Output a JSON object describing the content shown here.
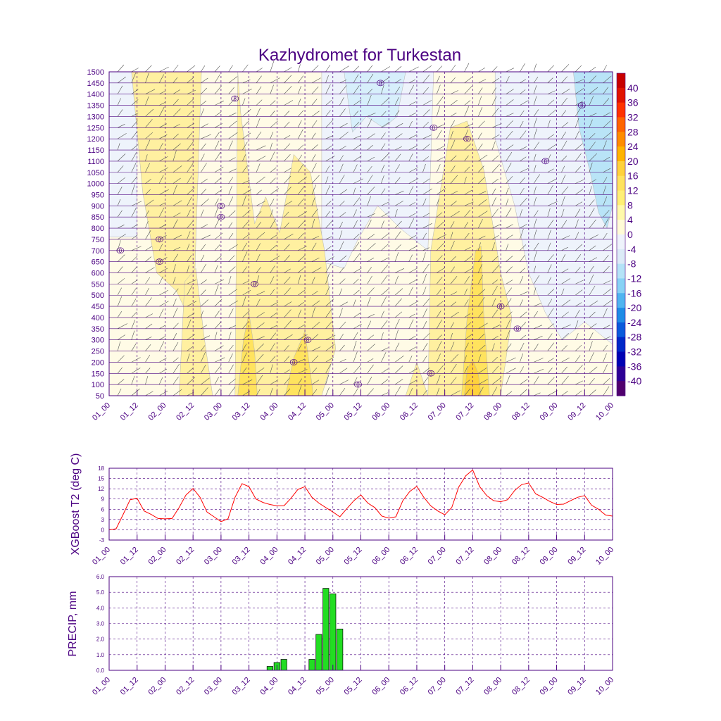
{
  "title": "Kazhydromet for Turkestan",
  "time_labels": [
    "01_00",
    "01_12",
    "02_00",
    "02_12",
    "03_00",
    "03_12",
    "04_00",
    "04_12",
    "05_00",
    "05_12",
    "06_00",
    "06_12",
    "07_00",
    "07_12",
    "08_00",
    "08_12",
    "09_00",
    "09_12",
    "10_00"
  ],
  "chart_data": [
    {
      "type": "heatmap",
      "name": "cross-section",
      "title": "Kazhydromet for Turkestan",
      "y_levels": [
        1500,
        1450,
        1400,
        1350,
        1300,
        1250,
        1200,
        1150,
        1100,
        1050,
        1000,
        950,
        900,
        850,
        800,
        750,
        700,
        650,
        600,
        550,
        500,
        450,
        400,
        350,
        300,
        250,
        200,
        150,
        100,
        50
      ],
      "ylim": [
        50,
        1500
      ],
      "x_range": [
        0,
        18
      ],
      "colorbar": {
        "labels": [
          "40",
          "36",
          "32",
          "28",
          "24",
          "20",
          "16",
          "12",
          "8",
          "4",
          "0",
          "-4",
          "-8",
          "-12",
          "-16",
          "-20",
          "-24",
          "-28",
          "-32",
          "-36",
          "-40"
        ],
        "colors": [
          "#c80000",
          "#e11400",
          "#ff3200",
          "#ff6400",
          "#ff8c00",
          "#ffb400",
          "#ffd23c",
          "#ffe35e",
          "#fff075",
          "#fffaaa",
          "#fffcd6",
          "#eef3fb",
          "#dcebf7",
          "#b4e3f7",
          "#87d2f5",
          "#50b4f0",
          "#1e8ce6",
          "#0a5adc",
          "#0028c8",
          "#0000b4",
          "#2d0096",
          "#50006e"
        ]
      },
      "annotations": [
        "8",
        "8",
        "8",
        "8",
        "8",
        "8",
        "8",
        "8",
        "8",
        "0",
        "0",
        "0",
        "0",
        "0",
        "0",
        "0",
        "0",
        "0"
      ]
    },
    {
      "type": "line",
      "name": "t2",
      "ylabel": "XGBoost T2 (deg C)",
      "ylim": [
        -3,
        18
      ],
      "yticks": [
        "-3",
        "0",
        "3",
        "6",
        "9",
        "12",
        "15",
        "18"
      ],
      "x": [
        0,
        0.25,
        0.5,
        0.75,
        1,
        1.25,
        1.5,
        1.75,
        2,
        2.25,
        2.5,
        2.75,
        3,
        3.25,
        3.5,
        3.75,
        4,
        4.25,
        4.5,
        4.75,
        5,
        5.25,
        5.5,
        5.75,
        6,
        6.25,
        6.5,
        6.75,
        7,
        7.25,
        7.5,
        7.75,
        8,
        8.25,
        8.5,
        8.75,
        9,
        9.25,
        9.5,
        9.75,
        10,
        10.25,
        10.5,
        10.75,
        11,
        11.25,
        11.5,
        11.75,
        12,
        12.25,
        12.5,
        12.75,
        13,
        13.25,
        13.5,
        13.75,
        14,
        14.25,
        14.5,
        14.75,
        15,
        15.25,
        15.5,
        15.75,
        16,
        16.25,
        16.5,
        16.75,
        17,
        17.25,
        17.5,
        17.75,
        18
      ],
      "values": [
        0,
        0.3,
        4.5,
        8.8,
        9.2,
        5.5,
        4.5,
        3.3,
        3.2,
        3.3,
        6.5,
        10.2,
        12.1,
        9.5,
        5.2,
        3.8,
        2.4,
        3.2,
        9.5,
        13.5,
        12.6,
        9,
        8,
        7.4,
        7,
        7,
        9.2,
        11.8,
        12.6,
        9.5,
        7.8,
        6.5,
        5.2,
        3.8,
        6.2,
        8.5,
        10.2,
        7.8,
        6.5,
        4,
        3.4,
        3.8,
        8.5,
        11.2,
        12.7,
        9.5,
        7,
        5.5,
        4.4,
        6.5,
        12.5,
        15.8,
        17.5,
        12.6,
        10,
        8.5,
        8.2,
        8.8,
        11.5,
        13.2,
        13.7,
        10.5,
        9.5,
        8.3,
        7.4,
        7.5,
        8.5,
        9.5,
        10,
        7.2,
        6,
        4.3,
        4
      ]
    },
    {
      "type": "bar",
      "name": "precip",
      "ylabel": "PRECIP, mm",
      "ylim": [
        0,
        6
      ],
      "yticks": [
        "0.0",
        "1.0",
        "2.0",
        "3.0",
        "4.0",
        "5.0",
        "6.0"
      ],
      "x": [
        5.75,
        6,
        6.25,
        7.25,
        7.5,
        7.75,
        8,
        8.25
      ],
      "values": [
        0.25,
        0.5,
        0.7,
        0.7,
        2.3,
        5.25,
        4.9,
        2.65
      ]
    }
  ]
}
